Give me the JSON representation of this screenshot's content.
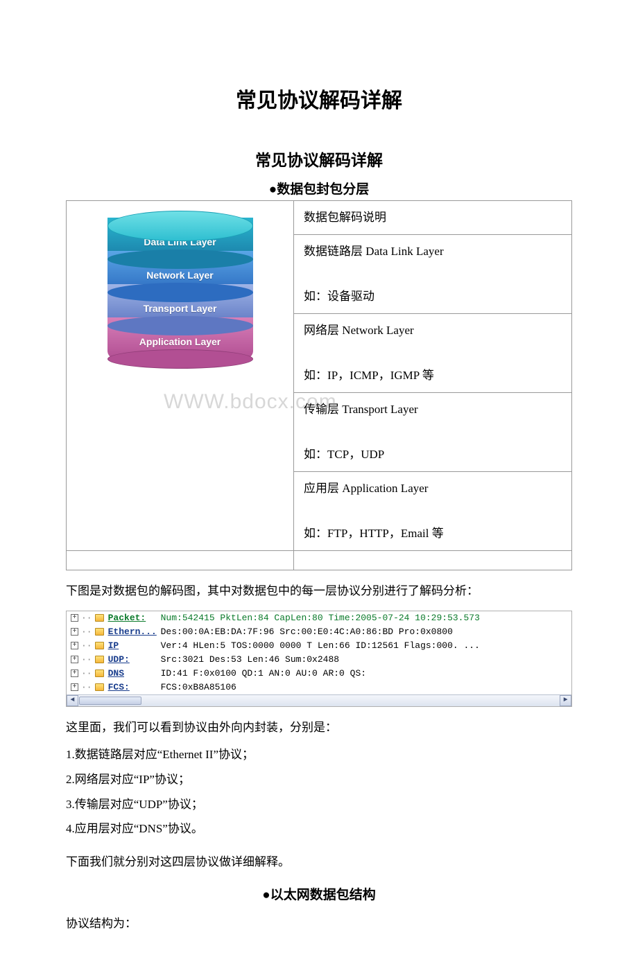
{
  "titles": {
    "main": "常见协议解码详解",
    "sub": "常见协议解码详解",
    "section1": "●数据包封包分层",
    "section2": "●以太网数据包结构"
  },
  "watermark": "WWW.bdocx.com",
  "cylinder": {
    "labels": [
      "Data Link Layer",
      "Network Layer",
      "Transport Layer",
      "Application Layer"
    ],
    "colors": {
      "top": "#2fbfd1",
      "s1": "#1a7fa8",
      "s2": "#2d6cc0",
      "s3": "#5e77c2",
      "s4": "#b24f93"
    }
  },
  "layer_desc": {
    "r0": "数据包解码说明",
    "r1a": "数据链路层 Data Link Layer",
    "r1b": "如：设备驱动",
    "r2a": "网络层 Network Layer",
    "r2b": "如：IP，ICMP，IGMP 等",
    "r3a": "传输层 Transport Layer",
    "r3b": "如：TCP，UDP",
    "r4a": "应用层 Application Layer",
    "r4b": "如：FTP，HTTP，Email 等"
  },
  "para_intro": "下图是对数据包的解码图，其中对数据包中的每一层协议分别进行了解码分析：",
  "decode_rows": [
    {
      "proto": "Packet:",
      "proto_cls": "proto-packet",
      "pw": 64,
      "text": "Num:542415 PktLen:84 CapLen:80 Time:2005-07-24 10:29:53.573",
      "txt_cls": "txt"
    },
    {
      "proto": "Ethern...",
      "proto_cls": "proto",
      "pw": 64,
      "text": "Des:00:0A:EB:DA:7F:96 Src:00:E0:4C:A0:86:BD Pro:0x0800",
      "txt_cls": "txt-black"
    },
    {
      "proto": "IP",
      "proto_cls": "proto",
      "pw": 64,
      "text": "Ver:4 HLen:5 TOS:0000 0000 T Len:66 ID:12561 Flags:000. ...",
      "txt_cls": "txt-black"
    },
    {
      "proto": "UDP:",
      "proto_cls": "proto",
      "pw": 64,
      "text": "Src:3021 Des:53 Len:46 Sum:0x2488",
      "txt_cls": "txt-black"
    },
    {
      "proto": "DNS",
      "proto_cls": "proto",
      "pw": 64,
      "text": "ID:41 F:0x0100 QD:1 AN:0 AU:0 AR:0 QS:",
      "txt_cls": "txt-black"
    },
    {
      "proto": "FCS:",
      "proto_cls": "proto",
      "pw": 64,
      "text": "FCS:0xB8A85106",
      "txt_cls": "txt-black"
    }
  ],
  "para_after": "这里面，我们可以看到协议由外向内封装，分别是：",
  "num_items": [
    "1.数据链路层对应“Ethernet II”协议；",
    "2.网络层对应“IP”协议；",
    "3.传输层对应“UDP”协议；",
    "4.应用层对应“DNS”协议。"
  ],
  "para_tail": "下面我们就分别对这四层协议做详细解释。",
  "para_struct": "协议结构为："
}
